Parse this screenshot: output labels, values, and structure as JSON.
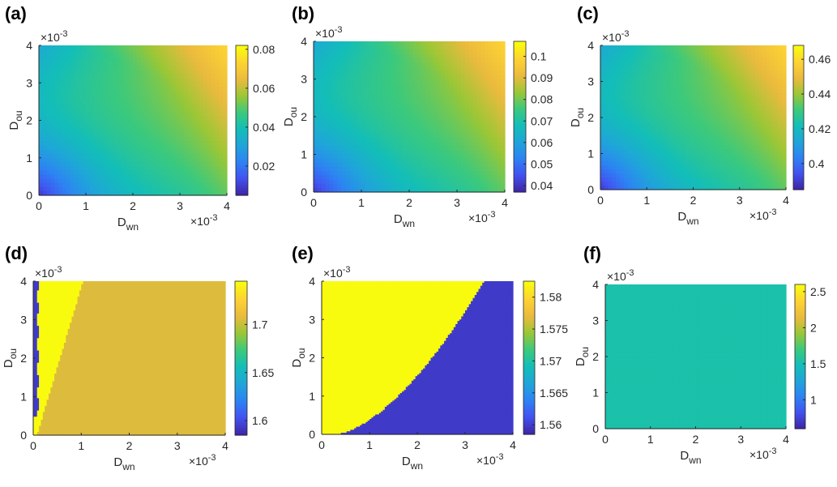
{
  "colormap": [
    "#3e26a8",
    "#4253f1",
    "#2d83f3",
    "#1fa5d9",
    "#13beb8",
    "#3cc97c",
    "#9ac736",
    "#eaba3e",
    "#fdd233",
    "#f9fb0e"
  ],
  "chart_data": [
    {
      "id": "a",
      "type": "heatmap",
      "panel_label": "(a)",
      "x_label": "D",
      "x_label_sub": "wn",
      "y_label": "D",
      "y_label_sub": "ou",
      "x_ticks": [
        "0",
        "1",
        "2",
        "3",
        "4"
      ],
      "y_ticks": [
        "0",
        "1",
        "2",
        "3",
        "4"
      ],
      "x_exponent": "×10",
      "y_exponent": "×10",
      "exponent_power": "-3",
      "xlim": [
        0,
        0.004
      ],
      "ylim": [
        0,
        0.004
      ],
      "colorbar_ticks": [
        "0.02",
        "0.04",
        "0.06",
        "0.08"
      ],
      "colorbar_values": [
        0.02,
        0.04,
        0.06,
        0.08
      ],
      "clim": [
        0.005,
        0.082
      ],
      "field": "smooth"
    },
    {
      "id": "b",
      "type": "heatmap",
      "panel_label": "(b)",
      "x_label": "D",
      "x_label_sub": "wn",
      "y_label": "D",
      "y_label_sub": "ou",
      "x_ticks": [
        "0",
        "1",
        "2",
        "3",
        "4"
      ],
      "y_ticks": [
        "0",
        "1",
        "2",
        "3",
        "4"
      ],
      "x_exponent": "×10",
      "y_exponent": "×10",
      "exponent_power": "-3",
      "xlim": [
        0,
        0.004
      ],
      "ylim": [
        0,
        0.004
      ],
      "colorbar_ticks": [
        "0.04",
        "0.05",
        "0.06",
        "0.07",
        "0.08",
        "0.09",
        "0.1"
      ],
      "colorbar_values": [
        0.04,
        0.05,
        0.06,
        0.07,
        0.08,
        0.09,
        0.1
      ],
      "clim": [
        0.037,
        0.107
      ],
      "field": "smooth"
    },
    {
      "id": "c",
      "type": "heatmap",
      "panel_label": "(c)",
      "x_label": "D",
      "x_label_sub": "wn",
      "y_label": "D",
      "y_label_sub": "ou",
      "x_ticks": [
        "0",
        "1",
        "2",
        "3",
        "4"
      ],
      "y_ticks": [
        "0",
        "1",
        "2",
        "3",
        "4"
      ],
      "x_exponent": "×10",
      "y_exponent": "×10",
      "exponent_power": "-3",
      "xlim": [
        0,
        0.004
      ],
      "ylim": [
        0,
        0.004
      ],
      "colorbar_ticks": [
        "0.4",
        "0.42",
        "0.44",
        "0.46"
      ],
      "colorbar_values": [
        0.4,
        0.42,
        0.44,
        0.46
      ],
      "clim": [
        0.385,
        0.468
      ],
      "field": "smooth"
    },
    {
      "id": "d",
      "type": "heatmap",
      "panel_label": "(d)",
      "x_label": "D",
      "x_label_sub": "wn",
      "y_label": "D",
      "y_label_sub": "ou",
      "x_ticks": [
        "0",
        "1",
        "2",
        "3",
        "4"
      ],
      "y_ticks": [
        "0",
        "1",
        "2",
        "3",
        "4"
      ],
      "x_exponent": "×10",
      "y_exponent": "×10",
      "exponent_power": "-3",
      "xlim": [
        0,
        0.004
      ],
      "ylim": [
        0,
        0.004
      ],
      "colorbar_ticks": [
        "1.6",
        "1.65",
        "1.7"
      ],
      "colorbar_values": [
        1.6,
        1.65,
        1.7
      ],
      "clim": [
        1.585,
        1.745
      ],
      "field": "d"
    },
    {
      "id": "e",
      "type": "heatmap",
      "panel_label": "(e)",
      "x_label": "D",
      "x_label_sub": "wn",
      "y_label": "D",
      "y_label_sub": "ou",
      "x_ticks": [
        "0",
        "1",
        "2",
        "3",
        "4"
      ],
      "y_ticks": [
        "0",
        "1",
        "2",
        "3",
        "4"
      ],
      "x_exponent": "×10",
      "y_exponent": "×10",
      "exponent_power": "-3",
      "xlim": [
        0,
        0.004
      ],
      "ylim": [
        0,
        0.004
      ],
      "colorbar_ticks": [
        "1.56",
        "1.565",
        "1.57",
        "1.575",
        "1.58"
      ],
      "colorbar_values": [
        1.56,
        1.565,
        1.57,
        1.575,
        1.58
      ],
      "clim": [
        1.5585,
        1.5825
      ],
      "field": "e"
    },
    {
      "id": "f",
      "type": "heatmap",
      "panel_label": "(f)",
      "x_label": "D",
      "x_label_sub": "wn",
      "y_label": "D",
      "y_label_sub": "ou",
      "x_ticks": [
        "0",
        "1",
        "2",
        "3",
        "4"
      ],
      "y_ticks": [
        "0",
        "1",
        "2",
        "3",
        "4"
      ],
      "x_exponent": "×10",
      "y_exponent": "×10",
      "exponent_power": "-3",
      "xlim": [
        0,
        0.004
      ],
      "ylim": [
        0,
        0.004
      ],
      "colorbar_ticks": [
        "1",
        "1.5",
        "2",
        "2.5"
      ],
      "colorbar_values": [
        1,
        1.5,
        2,
        2.5
      ],
      "clim": [
        0.6,
        2.6
      ],
      "field": "f"
    }
  ]
}
